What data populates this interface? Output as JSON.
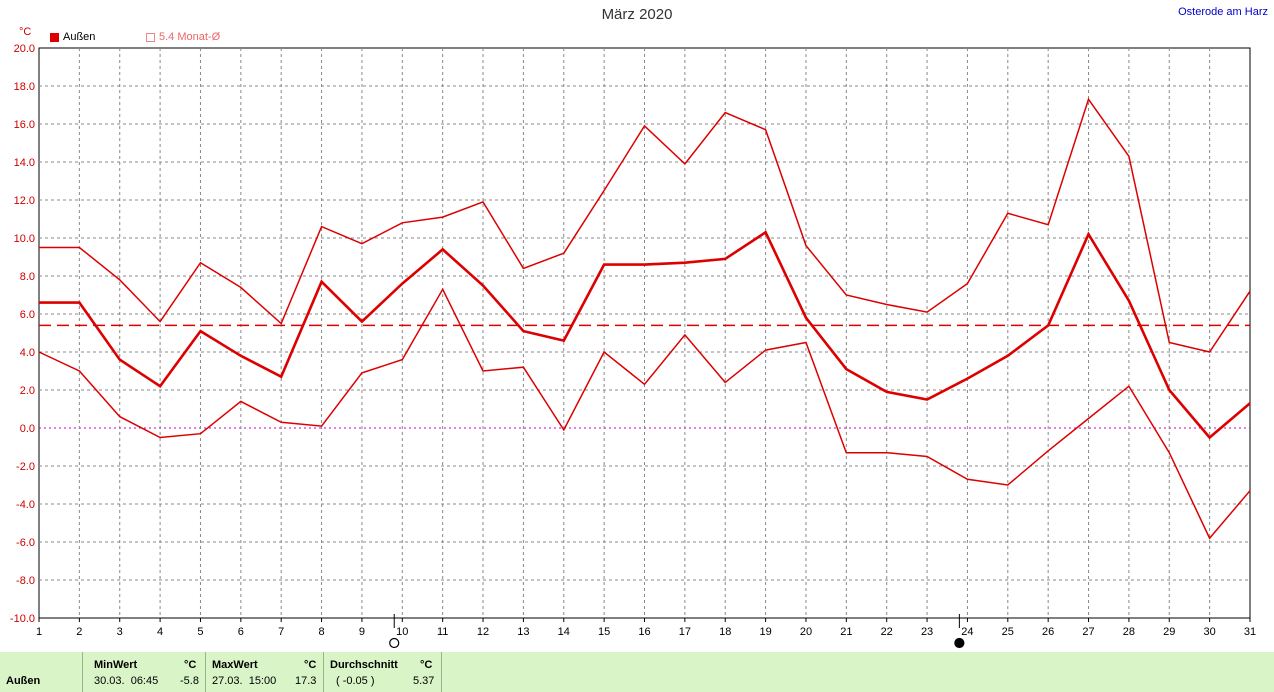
{
  "title": "März 2020",
  "location": "Osterode am Harz",
  "unit": "°C",
  "legend": {
    "series_label": "Außen",
    "avg_label": "5.4 Monat-Ø"
  },
  "colors": {
    "series": "#dd0000",
    "grid": "#888888",
    "zero_line": "#cc00cc",
    "stats_bg": "#d9f5c8"
  },
  "moon_phase_icons": [
    "new-moon-icon",
    "full-moon-icon"
  ],
  "chart_data": {
    "type": "line",
    "x": [
      1,
      2,
      3,
      4,
      5,
      6,
      7,
      8,
      9,
      10,
      11,
      12,
      13,
      14,
      15,
      16,
      17,
      18,
      19,
      20,
      21,
      22,
      23,
      24,
      25,
      26,
      27,
      28,
      29,
      30,
      31
    ],
    "ylim": [
      -10,
      20
    ],
    "y_ticks": [
      "20.0",
      "18.0",
      "16.0",
      "14.0",
      "12.0",
      "10.0",
      "8.0",
      "6.0",
      "4.0",
      "2.0",
      "0.0",
      "-2.0",
      "-4.0",
      "-6.0",
      "-8.0",
      "-10.0"
    ],
    "x_ticks": [
      "1",
      "2",
      "3",
      "4",
      "5",
      "6",
      "7",
      "8",
      "9",
      "10",
      "11",
      "12",
      "13",
      "14",
      "15",
      "16",
      "17",
      "18",
      "19",
      "20",
      "21",
      "22",
      "23",
      "24",
      "25",
      "26",
      "27",
      "28",
      "29",
      "30",
      "31"
    ],
    "grid": true,
    "monthly_average": 5.4,
    "series": [
      {
        "role": "max",
        "values": [
          9.5,
          9.5,
          7.8,
          5.6,
          8.7,
          7.4,
          5.5,
          10.6,
          9.7,
          10.8,
          11.1,
          11.9,
          8.4,
          9.2,
          12.5,
          15.9,
          13.9,
          16.6,
          15.7,
          9.6,
          7.0,
          6.5,
          6.1,
          7.6,
          11.3,
          10.7,
          17.3,
          14.3,
          4.5,
          4.0,
          7.2
        ]
      },
      {
        "role": "mean",
        "name": "Außen",
        "values": [
          6.6,
          6.6,
          3.6,
          2.2,
          5.1,
          3.8,
          2.7,
          7.7,
          5.6,
          7.6,
          9.4,
          7.5,
          5.1,
          4.6,
          8.6,
          8.6,
          8.7,
          8.9,
          10.3,
          5.8,
          3.1,
          1.9,
          1.5,
          2.6,
          3.8,
          5.4,
          10.2,
          6.7,
          2.0,
          -0.5,
          1.3
        ]
      },
      {
        "role": "min",
        "values": [
          4.0,
          3.0,
          0.6,
          -0.5,
          -0.3,
          1.4,
          0.3,
          0.1,
          2.9,
          3.6,
          7.3,
          3.0,
          3.2,
          -0.1,
          4.0,
          2.3,
          4.9,
          2.4,
          4.1,
          4.5,
          -1.3,
          -1.3,
          -1.5,
          -2.7,
          -3.0,
          -1.2,
          0.5,
          2.2,
          -1.3,
          -5.8,
          -3.3
        ]
      }
    ]
  },
  "stats": {
    "row_label": "Außen",
    "min": {
      "header": "MinWert",
      "unit": "°C",
      "when": "30.03.  06:45",
      "value": "-5.8"
    },
    "max": {
      "header": "MaxWert",
      "unit": "°C",
      "when": "27.03.  15:00",
      "value": "17.3"
    },
    "avg": {
      "header": "Durchschnitt",
      "unit": "°C",
      "note": "( -0.05 )",
      "value": "5.37"
    }
  }
}
